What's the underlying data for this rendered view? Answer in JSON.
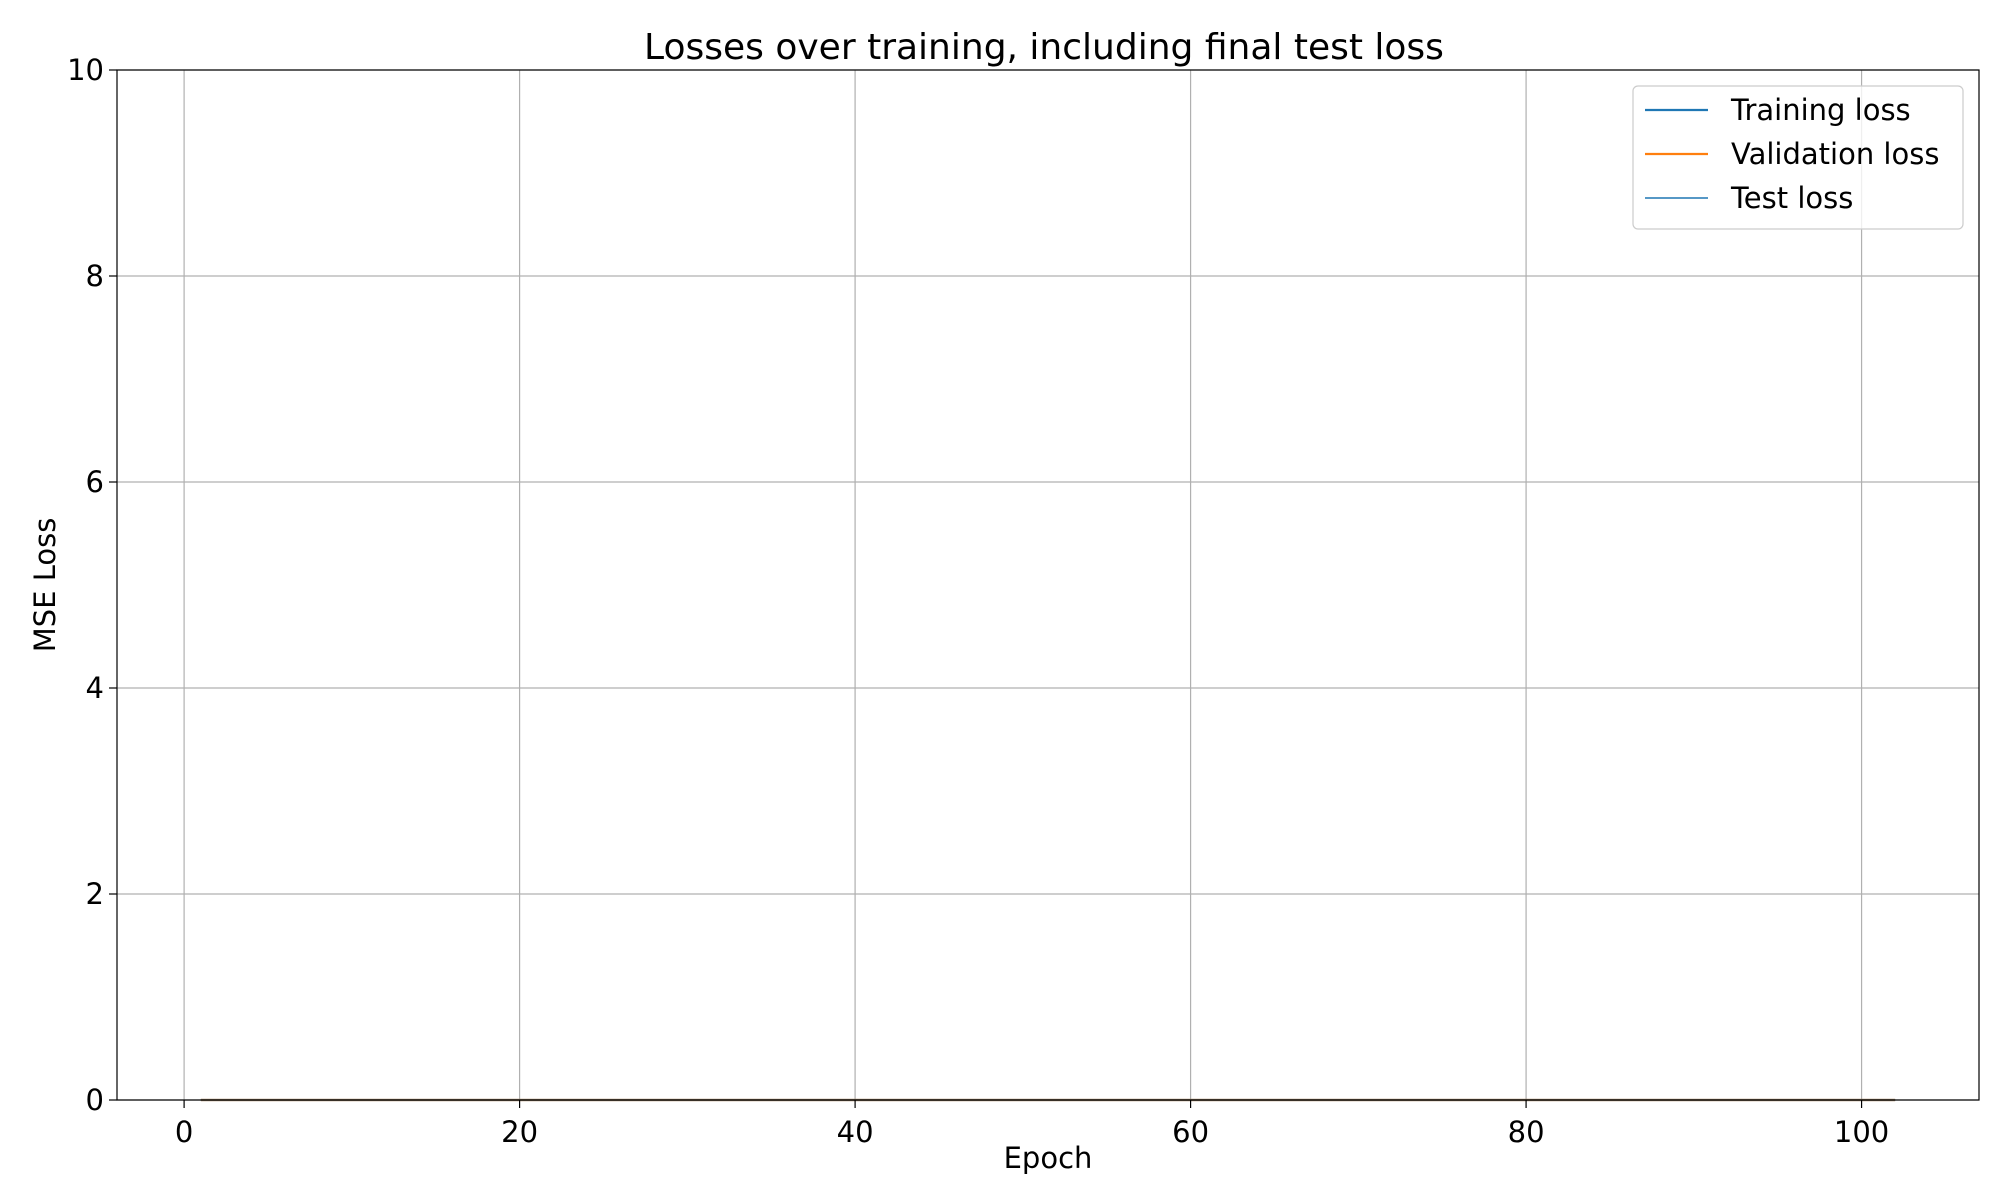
{
  "chart_data": {
    "type": "line",
    "title": "Losses over training, including final test loss",
    "xlabel": "Epoch",
    "ylabel": "MSE Loss",
    "xlim": [
      -4,
      107
    ],
    "ylim": [
      0,
      10
    ],
    "x_ticks": [
      0,
      20,
      40,
      60,
      80,
      100
    ],
    "y_ticks": [
      0,
      2,
      4,
      6,
      8,
      10
    ],
    "grid": true,
    "legend_position": "top-right",
    "series": [
      {
        "name": "Training loss",
        "color": "#1f77b4",
        "x_start": 1,
        "x_end": 102,
        "value": 0.0
      },
      {
        "name": "Validation loss",
        "color": "#ff7f0e",
        "x_start": 1,
        "x_end": 102,
        "value": 0.0
      },
      {
        "name": "Test loss",
        "color": "#1f77b4",
        "x_start": 1,
        "x_end": 102,
        "value": 0.0
      }
    ]
  }
}
